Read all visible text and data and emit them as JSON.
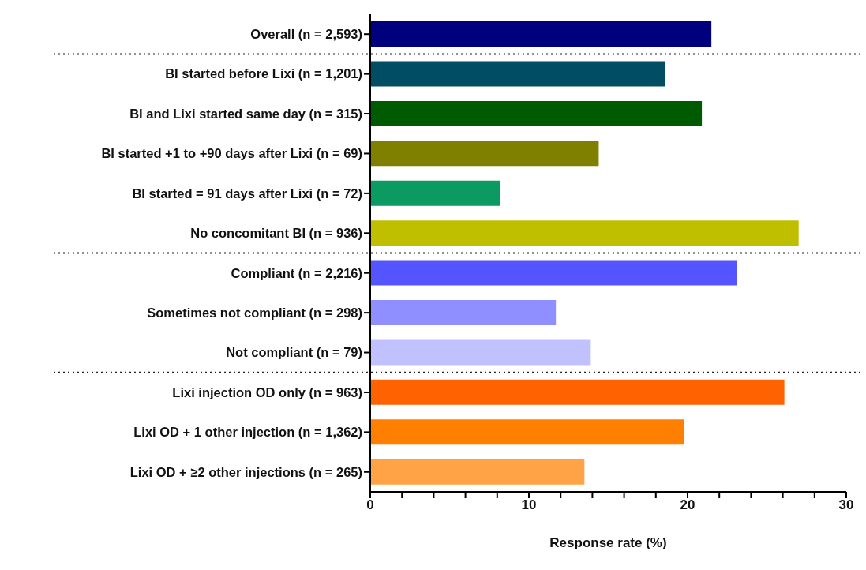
{
  "chart_data": {
    "type": "bar",
    "orientation": "horizontal",
    "xlabel": "Response rate (%)",
    "categories": [
      "Overall (n = 2,593)",
      "BI started before Lixi (n = 1,201)",
      "BI and Lixi started same day (n = 315)",
      "BI started +1 to +90 days after Lixi (n = 69)",
      "BI started = 91 days after Lixi (n = 72)",
      "No concomitant BI (n = 936)",
      "Compliant (n = 2,216)",
      "Sometimes not compliant (n = 298)",
      "Not compliant (n = 79)",
      "Lixi injection OD only (n = 963)",
      "Lixi OD + 1 other injection (n = 1,362)",
      "Lixi OD + ≥2 other injections (n = 265)"
    ],
    "values": [
      21.5,
      18.6,
      20.9,
      14.4,
      8.2,
      27.0,
      23.1,
      11.7,
      13.9,
      26.1,
      19.8,
      13.5
    ],
    "colors": [
      "#00007f",
      "#014d63",
      "#005a00",
      "#7f7f00",
      "#0a9a62",
      "#bfbf00",
      "#5555ff",
      "#8f8fff",
      "#c1c1ff",
      "#ff6201",
      "#ff8000",
      "#ffa346"
    ],
    "xlim": [
      0,
      30
    ],
    "xticks": [
      0,
      {
        "value": 2,
        "label": null
      },
      {
        "value": 4,
        "label": null
      },
      {
        "value": 6,
        "label": null
      },
      {
        "value": 8,
        "label": null
      },
      10,
      {
        "value": 12,
        "label": null
      },
      {
        "value": 14,
        "label": null
      },
      {
        "value": 16,
        "label": null
      },
      {
        "value": 18,
        "label": null
      },
      20,
      {
        "value": 22,
        "label": null
      },
      {
        "value": 24,
        "label": null
      },
      {
        "value": 26,
        "label": null
      },
      {
        "value": 28,
        "label": null
      },
      30
    ],
    "tick_labels": true
  }
}
